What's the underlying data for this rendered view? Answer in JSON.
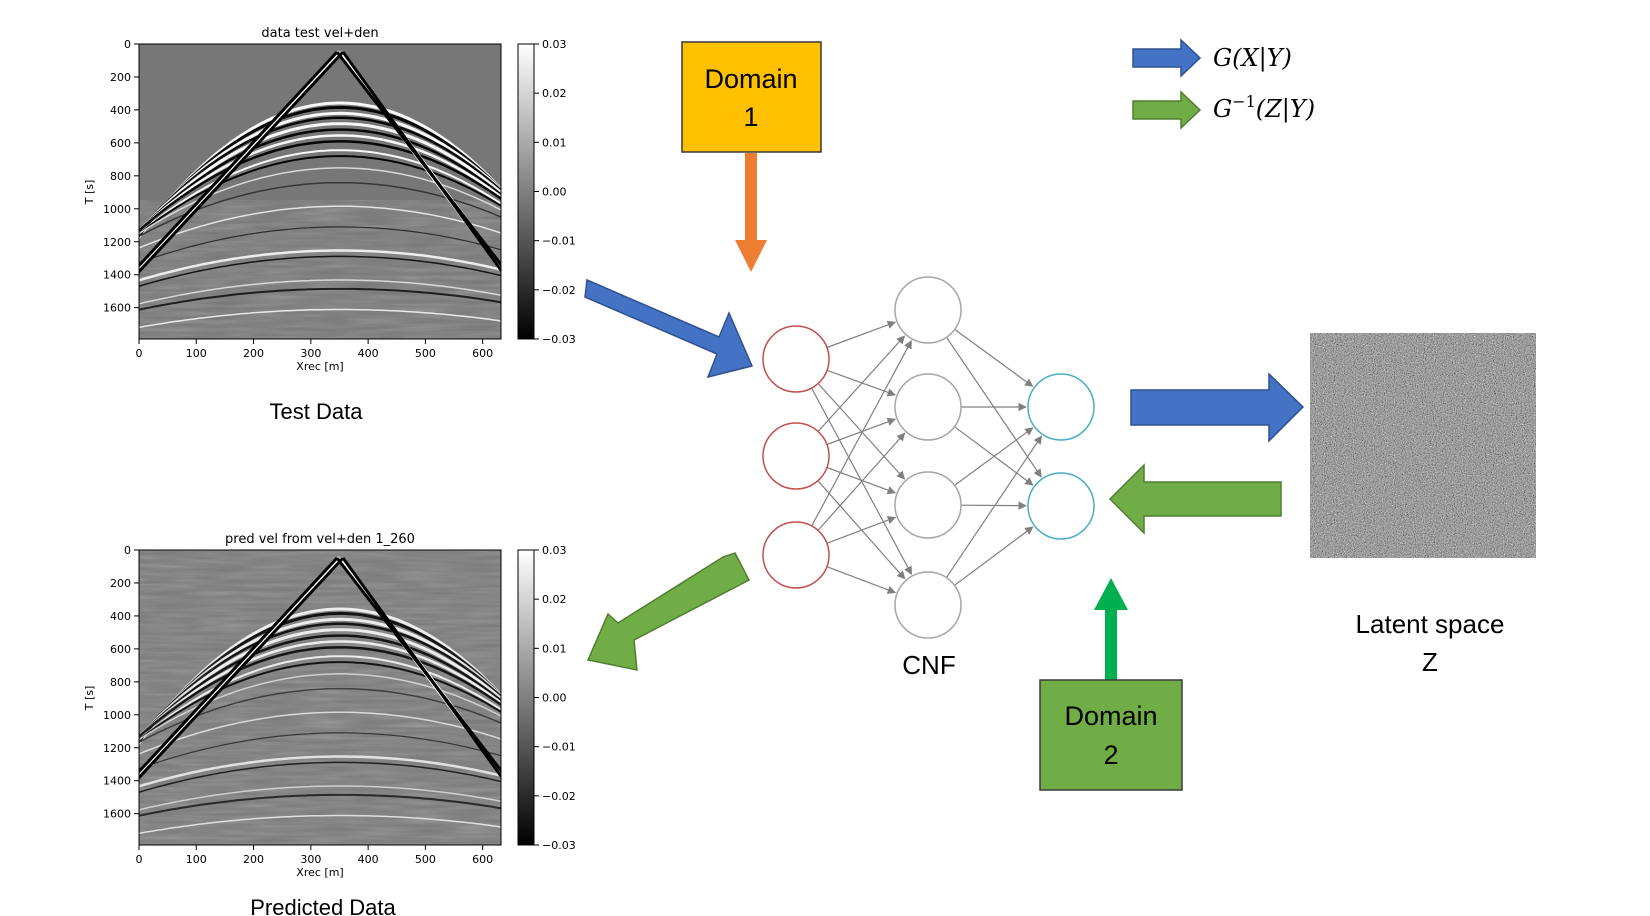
{
  "top_panel": {
    "title": "data test vel+den",
    "ylabel": "T [s]",
    "xlabel": "Xrec [m]",
    "yticks": [
      "0",
      "200",
      "400",
      "600",
      "800",
      "1000",
      "1200",
      "1400",
      "1600"
    ],
    "xticks": [
      "0",
      "100",
      "200",
      "300",
      "400",
      "500",
      "600"
    ],
    "cbar_ticks": [
      "0.03",
      "0.02",
      "0.01",
      "0.00",
      "−0.01",
      "−0.02",
      "−0.03"
    ],
    "caption": "Test Data"
  },
  "bottom_panel": {
    "title": "pred vel from vel+den 1_260",
    "ylabel": "T [s]",
    "xlabel": "Xrec [m]",
    "yticks": [
      "0",
      "200",
      "400",
      "600",
      "800",
      "1000",
      "1200",
      "1400",
      "1600"
    ],
    "xticks": [
      "0",
      "100",
      "200",
      "300",
      "400",
      "500",
      "600"
    ],
    "cbar_ticks": [
      "0.03",
      "0.02",
      "0.01",
      "0.00",
      "−0.01",
      "−0.02",
      "−0.03"
    ],
    "caption": "Predicted Data"
  },
  "domain1": {
    "line1": "Domain",
    "line2": "1",
    "color": "#FFC000"
  },
  "domain2": {
    "line1": "Domain",
    "line2": "2",
    "color": "#70AD47"
  },
  "network": {
    "label": "CNF",
    "layers": [
      3,
      4,
      2
    ]
  },
  "latent": {
    "line1": "Latent space",
    "line2": "Z"
  },
  "legend": {
    "forward": "G(X|Y)",
    "inverse_main": "G",
    "inverse_sup": "−1",
    "inverse_tail": "(Z|Y)"
  },
  "colors": {
    "blue_arrow": "#4472C4",
    "green_arrow": "#70AD47",
    "orange_arrow": "#ED7D31",
    "bright_green_arrow": "#00B050",
    "input_node": "#C0504D",
    "hidden_node": "#A6A6A6",
    "output_node": "#4BACC6"
  }
}
